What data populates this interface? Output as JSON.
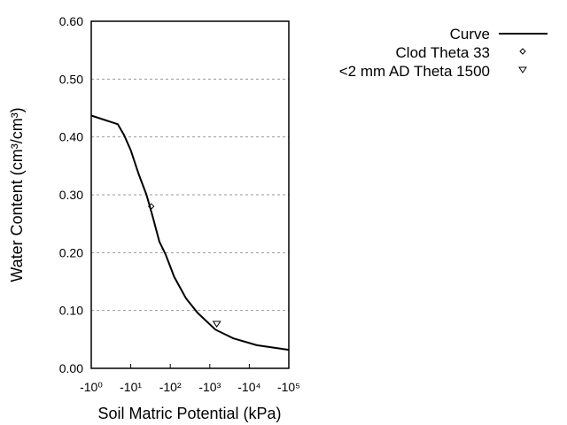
{
  "chart_data": {
    "type": "line",
    "title": "",
    "xlabel": "Soil Matric Potential (kPa)",
    "ylabel": "Water Content (cm³/cm³)",
    "x_scale": "log (negative values, magnitude increasing to the right)",
    "xlim": [
      -1,
      -100000
    ],
    "ylim": [
      0,
      0.6
    ],
    "x_tick_labels": [
      "-10⁰",
      "-10¹",
      "-10²",
      "-10³",
      "-10⁴",
      "-10⁵"
    ],
    "x_tick_values": [
      -1,
      -10,
      -100,
      -1000,
      -10000,
      -100000
    ],
    "y_tick_labels": [
      "0.00",
      "0.10",
      "0.20",
      "0.30",
      "0.40",
      "0.50",
      "0.60"
    ],
    "y_tick_values": [
      0,
      0.1,
      0.2,
      0.3,
      0.4,
      0.5,
      0.6
    ],
    "grid": "horizontal dashed",
    "legend_position": "top-right outside",
    "series": [
      {
        "name": "Curve",
        "style": "line",
        "color": "#000000",
        "x": [
          -1,
          -4.7,
          -6.8,
          -10,
          -16,
          -25,
          -35,
          -53,
          -76,
          -126,
          -250,
          -490,
          -1380,
          -3900,
          -15500,
          -100000
        ],
        "y": [
          0.437,
          0.422,
          0.403,
          0.377,
          0.335,
          0.3,
          0.265,
          0.219,
          0.197,
          0.158,
          0.121,
          0.096,
          0.067,
          0.052,
          0.04,
          0.032
        ]
      },
      {
        "name": "Clod Theta 33",
        "style": "diamond",
        "color": "#000000",
        "x": [
          -33
        ],
        "y": [
          0.28
        ]
      },
      {
        "name": "<2 mm AD Theta 1500",
        "style": "triangle-down",
        "color": "#000000",
        "x": [
          -1500
        ],
        "y": [
          0.078
        ]
      }
    ]
  }
}
